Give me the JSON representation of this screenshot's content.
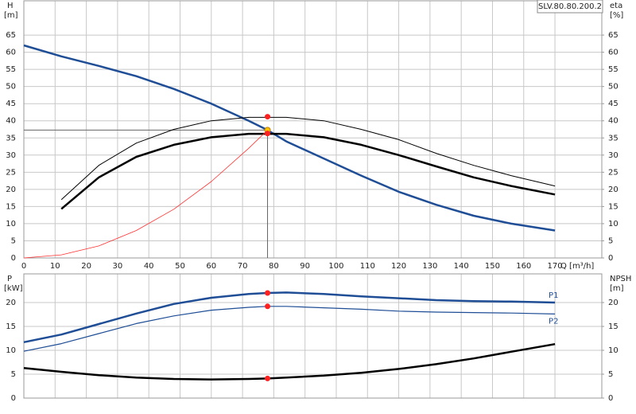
{
  "chart_data": [
    {
      "type": "line",
      "title": "SLV.80.80.200.2",
      "ylabel": "H",
      "yunit": "[m]",
      "y2label": "eta",
      "y2unit": "[%]",
      "xlabel": "Q [m³/h]",
      "xlim": [
        0,
        185
      ],
      "xticks": [
        0,
        10,
        20,
        30,
        40,
        50,
        60,
        70,
        80,
        90,
        100,
        110,
        120,
        130,
        140,
        150,
        160,
        170
      ],
      "ylim": [
        0,
        75
      ],
      "yticks": [
        0,
        5,
        10,
        15,
        20,
        25,
        30,
        35,
        40,
        45,
        50,
        55,
        60,
        65
      ],
      "y2lim": [
        0,
        75
      ],
      "y2ticks": [
        0,
        5,
        10,
        15,
        20,
        25,
        30,
        35,
        40,
        45,
        50,
        55,
        60,
        65
      ],
      "grid": true,
      "show_xtick_labels": true,
      "series": [
        {
          "color": "#1f4e96",
          "width": 2.5,
          "x": [
            0,
            12,
            24,
            36,
            48,
            60,
            72,
            78,
            84,
            96,
            108,
            120,
            132,
            144,
            156,
            170
          ],
          "values": [
            62,
            58.8,
            56,
            53,
            49.3,
            45,
            40,
            37.3,
            34,
            29,
            24,
            19.3,
            15.5,
            12.3,
            10,
            8
          ]
        },
        {
          "color": "#000000",
          "width": 1,
          "axis": "y2",
          "x": [
            12,
            24,
            36,
            48,
            60,
            72,
            84,
            96,
            108,
            120,
            132,
            144,
            156,
            170
          ],
          "values": [
            17,
            27,
            33.5,
            37.5,
            40,
            41,
            41,
            40,
            37.5,
            34.5,
            30.5,
            27,
            24,
            21
          ]
        },
        {
          "color": "#000000",
          "width": 2.5,
          "axis": "y2",
          "x": [
            12,
            24,
            36,
            48,
            60,
            72,
            84,
            96,
            108,
            120,
            132,
            144,
            156,
            170
          ],
          "values": [
            14.3,
            23.5,
            29.5,
            33,
            35.2,
            36.2,
            36.2,
            35.2,
            33,
            30,
            26.7,
            23.5,
            21,
            18.5
          ]
        },
        {
          "color": "#ff3030",
          "width": 0.8,
          "x": [
            0,
            12,
            24,
            36,
            48,
            60,
            72,
            78
          ],
          "values": [
            0,
            0.9,
            3.5,
            8,
            14.2,
            22.3,
            32,
            37.3
          ]
        }
      ],
      "points": [
        {
          "x": 78,
          "y": 41.2,
          "axis": "y2",
          "color": "#ff2020"
        },
        {
          "x": 78,
          "y": 37.3,
          "color": "#ffc000",
          "guide": true
        },
        {
          "x": 78,
          "y": 36.3,
          "axis": "y2",
          "color": "#ff2020"
        }
      ]
    },
    {
      "type": "line",
      "ylabel": "P",
      "yunit": "[kW]",
      "y2label": "NPSH",
      "y2unit": "[m]",
      "xlim": [
        0,
        185
      ],
      "xticks": [
        0,
        10,
        20,
        30,
        40,
        50,
        60,
        70,
        80,
        90,
        100,
        110,
        120,
        130,
        140,
        150,
        160,
        170
      ],
      "ylim": [
        0,
        26
      ],
      "yticks": [
        0,
        5,
        10,
        15,
        20
      ],
      "y2lim": [
        0,
        26
      ],
      "y2ticks": [
        0,
        5,
        10,
        15,
        20
      ],
      "grid": true,
      "show_xtick_labels": false,
      "series": [
        {
          "name": "P1",
          "color": "#1f4e96",
          "width": 2.5,
          "x": [
            0,
            12,
            24,
            36,
            48,
            60,
            72,
            78,
            84,
            96,
            108,
            120,
            132,
            144,
            156,
            170
          ],
          "values": [
            11.7,
            13.3,
            15.5,
            17.7,
            19.7,
            21,
            21.8,
            22,
            22.1,
            21.8,
            21.3,
            20.9,
            20.5,
            20.3,
            20.2,
            20
          ]
        },
        {
          "name": "P2",
          "color": "#1f4e96",
          "width": 1.2,
          "x": [
            0,
            12,
            24,
            36,
            48,
            60,
            72,
            78,
            84,
            96,
            108,
            120,
            132,
            144,
            156,
            170
          ],
          "values": [
            9.8,
            11.4,
            13.5,
            15.6,
            17.2,
            18.4,
            19,
            19.2,
            19.2,
            18.9,
            18.6,
            18.2,
            18,
            17.9,
            17.8,
            17.6
          ]
        },
        {
          "color": "#000000",
          "width": 2.5,
          "axis": "y2",
          "x": [
            0,
            12,
            24,
            36,
            48,
            60,
            72,
            78,
            84,
            96,
            108,
            120,
            132,
            144,
            156,
            170
          ],
          "values": [
            6.3,
            5.5,
            4.8,
            4.3,
            4,
            3.9,
            4,
            4.1,
            4.3,
            4.7,
            5.3,
            6.1,
            7.1,
            8.3,
            9.7,
            11.3
          ]
        }
      ],
      "points": [
        {
          "x": 78,
          "y": 22,
          "color": "#ff2020"
        },
        {
          "x": 78,
          "y": 19.2,
          "color": "#ff2020"
        },
        {
          "x": 78,
          "y": 4.1,
          "axis": "y2",
          "color": "#ff2020"
        }
      ]
    }
  ]
}
